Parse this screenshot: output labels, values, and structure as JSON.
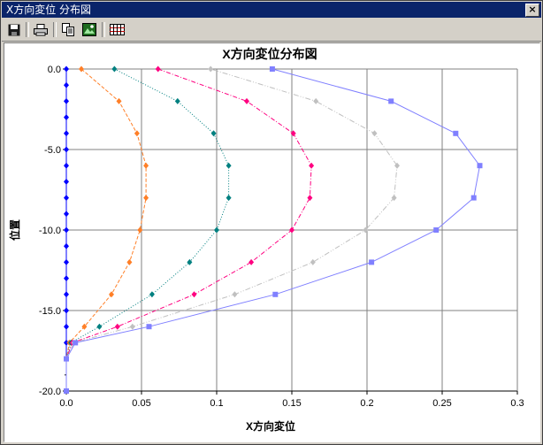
{
  "window": {
    "title": "X方向変位 分布図",
    "close_label": "×"
  },
  "toolbar": {
    "buttons": [
      {
        "name": "save-button",
        "icon": "floppy-disk-icon"
      },
      {
        "name": "print-button",
        "icon": "printer-icon"
      },
      {
        "name": "copy-button",
        "icon": "copy-icon"
      },
      {
        "name": "export-image-button",
        "icon": "image-export-icon"
      },
      {
        "name": "data-table-button",
        "icon": "table-icon"
      }
    ]
  },
  "chart_data": {
    "type": "line",
    "title": "X方向変位分布図",
    "xlabel": "X方向変位",
    "ylabel": "位置",
    "xlim": [
      0,
      0.3
    ],
    "ylim": [
      -20,
      0
    ],
    "x_ticks": [
      "0.0",
      "0.05",
      "0.1",
      "0.15",
      "0.2",
      "0.25",
      "0.3"
    ],
    "y_ticks": [
      "0.0",
      "-5.0",
      "-10.0",
      "-15.0",
      "-20.0"
    ],
    "grid": true,
    "series": [
      {
        "color": "#0000ff",
        "marker": "diamond",
        "dash": "solid",
        "points": [
          [
            0,
            0
          ],
          [
            0,
            -1
          ],
          [
            0,
            -2
          ],
          [
            0,
            -3
          ],
          [
            0,
            -4
          ],
          [
            0,
            -5
          ],
          [
            0,
            -6
          ],
          [
            0,
            -7
          ],
          [
            0,
            -8
          ],
          [
            0,
            -9
          ],
          [
            0,
            -10
          ],
          [
            0,
            -11
          ],
          [
            0,
            -12
          ],
          [
            0,
            -13
          ],
          [
            0,
            -14
          ],
          [
            0,
            -15
          ],
          [
            0,
            -16
          ],
          [
            0,
            -17
          ],
          [
            0,
            -18
          ]
        ]
      },
      {
        "color": "#ff7f27",
        "marker": "diamond",
        "dash": "4,2",
        "points": [
          [
            0.01,
            0
          ],
          [
            0.035,
            -2
          ],
          [
            0.047,
            -4
          ],
          [
            0.053,
            -6
          ],
          [
            0.053,
            -8
          ],
          [
            0.049,
            -10
          ],
          [
            0.042,
            -12
          ],
          [
            0.03,
            -14
          ],
          [
            0.012,
            -16
          ],
          [
            0.002,
            -17
          ],
          [
            0,
            -18
          ]
        ]
      },
      {
        "color": "#008080",
        "marker": "diamond",
        "dash": "1,2",
        "points": [
          [
            0.032,
            0
          ],
          [
            0.074,
            -2
          ],
          [
            0.098,
            -4
          ],
          [
            0.108,
            -6
          ],
          [
            0.108,
            -8
          ],
          [
            0.1,
            -10
          ],
          [
            0.082,
            -12
          ],
          [
            0.057,
            -14
          ],
          [
            0.022,
            -16
          ],
          [
            0.003,
            -17
          ],
          [
            0,
            -18
          ]
        ]
      },
      {
        "color": "#ff0080",
        "marker": "diamond",
        "dash": "5,2,1,2",
        "points": [
          [
            0.061,
            0
          ],
          [
            0.12,
            -2
          ],
          [
            0.151,
            -4
          ],
          [
            0.163,
            -6
          ],
          [
            0.162,
            -8
          ],
          [
            0.15,
            -10
          ],
          [
            0.123,
            -12
          ],
          [
            0.085,
            -14
          ],
          [
            0.034,
            -16
          ],
          [
            0.004,
            -17
          ],
          [
            0,
            -18
          ]
        ]
      },
      {
        "color": "#c0c0c0",
        "marker": "diamond",
        "dash": "6,2,1,2,1,2",
        "points": [
          [
            0.096,
            0
          ],
          [
            0.166,
            -2
          ],
          [
            0.205,
            -4
          ],
          [
            0.22,
            -6
          ],
          [
            0.218,
            -8
          ],
          [
            0.199,
            -10
          ],
          [
            0.164,
            -12
          ],
          [
            0.112,
            -14
          ],
          [
            0.044,
            -16
          ],
          [
            0.005,
            -17
          ],
          [
            0,
            -18
          ]
        ]
      },
      {
        "color": "#8080ff",
        "marker": "square",
        "dash": "solid",
        "points": [
          [
            0.137,
            0
          ],
          [
            0.216,
            -2
          ],
          [
            0.259,
            -4
          ],
          [
            0.275,
            -6
          ],
          [
            0.271,
            -8
          ],
          [
            0.246,
            -10
          ],
          [
            0.203,
            -12
          ],
          [
            0.139,
            -14
          ],
          [
            0.055,
            -16
          ],
          [
            0.006,
            -17
          ],
          [
            0,
            -18
          ],
          [
            0,
            -20
          ]
        ]
      }
    ]
  }
}
